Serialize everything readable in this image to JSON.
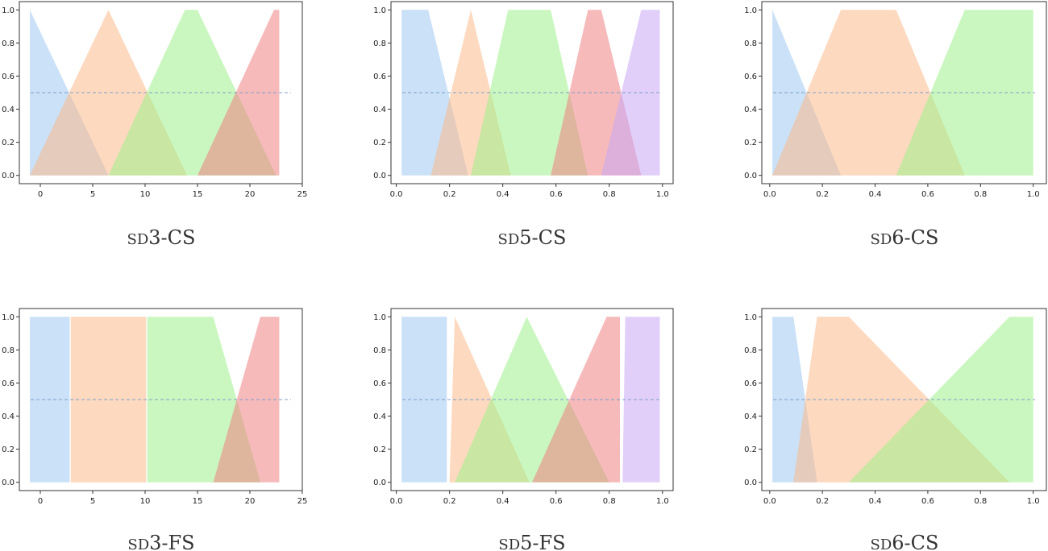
{
  "colors": {
    "fills": [
      "#9fc9f0",
      "#fbb98a",
      "#9ef08a",
      "#ef8284",
      "#c8a8f5"
    ],
    "fill_opacity": 0.55,
    "threshold_line": "#7f9fc9",
    "axes": "#333333"
  },
  "chart_data": [
    {
      "type": "area",
      "caption": "sd3-CS",
      "xlim": [
        -2,
        25
      ],
      "ylim": [
        -0.05,
        1.05
      ],
      "xticks": [
        "0",
        "5",
        "10",
        "15",
        "20",
        "25"
      ],
      "xtick_values": [
        0,
        5,
        10,
        15,
        20,
        25
      ],
      "yticks": [
        "0.0",
        "0.2",
        "0.4",
        "0.6",
        "0.8",
        "1.0"
      ],
      "ytick_values": [
        0,
        0.2,
        0.4,
        0.6,
        0.8,
        1.0
      ],
      "threshold": 0.5,
      "series": [
        {
          "x": [
            -1,
            -1,
            6.5
          ],
          "y": [
            0,
            1,
            0
          ]
        },
        {
          "x": [
            -1,
            6.5,
            14
          ],
          "y": [
            0,
            1,
            0
          ]
        },
        {
          "x": [
            6.5,
            13.8,
            15,
            22.5
          ],
          "y": [
            0,
            1,
            1,
            0
          ]
        },
        {
          "x": [
            15,
            22.3,
            22.8,
            22.8
          ],
          "y": [
            0,
            1,
            1,
            0
          ]
        }
      ]
    },
    {
      "type": "area",
      "caption": "sd5-CS",
      "xlim": [
        -0.02,
        1.04
      ],
      "ylim": [
        -0.05,
        1.05
      ],
      "xticks": [
        "0.0",
        "0.2",
        "0.4",
        "0.6",
        "0.8",
        "1.0"
      ],
      "xtick_values": [
        0,
        0.2,
        0.4,
        0.6,
        0.8,
        1.0
      ],
      "yticks": [
        "0.0",
        "0.2",
        "0.4",
        "0.6",
        "0.8",
        "1.0"
      ],
      "ytick_values": [
        0,
        0.2,
        0.4,
        0.6,
        0.8,
        1.0
      ],
      "threshold": 0.5,
      "series": [
        {
          "x": [
            0.02,
            0.02,
            0.12,
            0.27
          ],
          "y": [
            0,
            1,
            1,
            0
          ]
        },
        {
          "x": [
            0.13,
            0.28,
            0.43
          ],
          "y": [
            0,
            1,
            0
          ]
        },
        {
          "x": [
            0.28,
            0.42,
            0.58,
            0.72
          ],
          "y": [
            0,
            1,
            1,
            0
          ]
        },
        {
          "x": [
            0.58,
            0.72,
            0.77,
            0.92
          ],
          "y": [
            0,
            1,
            1,
            0
          ]
        },
        {
          "x": [
            0.77,
            0.92,
            0.99,
            0.99
          ],
          "y": [
            0,
            1,
            1,
            0
          ]
        }
      ]
    },
    {
      "type": "area",
      "caption": "sd6-CS",
      "xlim": [
        -0.03,
        1.05
      ],
      "ylim": [
        -0.05,
        1.05
      ],
      "xticks": [
        "0.0",
        "0.2",
        "0.4",
        "0.6",
        "0.8",
        "1.0"
      ],
      "xtick_values": [
        0,
        0.2,
        0.4,
        0.6,
        0.8,
        1.0
      ],
      "yticks": [
        "0.0",
        "0.2",
        "0.4",
        "0.6",
        "0.8",
        "1.0"
      ],
      "ytick_values": [
        0,
        0.2,
        0.4,
        0.6,
        0.8,
        1.0
      ],
      "threshold": 0.5,
      "series": [
        {
          "x": [
            0.01,
            0.01,
            0.27
          ],
          "y": [
            0,
            1,
            0
          ]
        },
        {
          "x": [
            0.01,
            0.27,
            0.48,
            0.74
          ],
          "y": [
            0,
            1,
            1,
            0
          ]
        },
        {
          "x": [
            0.48,
            0.74,
            1.0,
            1.0
          ],
          "y": [
            0,
            1,
            1,
            0
          ]
        }
      ]
    },
    {
      "type": "area",
      "caption": "sd3-FS",
      "xlim": [
        -2,
        25
      ],
      "ylim": [
        -0.05,
        1.05
      ],
      "xticks": [
        "0",
        "5",
        "10",
        "15",
        "20",
        "25"
      ],
      "xtick_values": [
        0,
        5,
        10,
        15,
        20,
        25
      ],
      "yticks": [
        "0.0",
        "0.2",
        "0.4",
        "0.6",
        "0.8",
        "1.0"
      ],
      "ytick_values": [
        0,
        0.2,
        0.4,
        0.6,
        0.8,
        1.0
      ],
      "threshold": 0.5,
      "series": [
        {
          "x": [
            -1,
            -1,
            2.8,
            2.8
          ],
          "y": [
            0,
            1,
            1,
            0
          ]
        },
        {
          "x": [
            2.9,
            2.9,
            10.1,
            10.1
          ],
          "y": [
            0,
            1,
            1,
            0
          ]
        },
        {
          "x": [
            10.2,
            10.2,
            16.5,
            21
          ],
          "y": [
            0,
            1,
            1,
            0
          ]
        },
        {
          "x": [
            16.5,
            21,
            22.8,
            22.8
          ],
          "y": [
            0,
            1,
            1,
            0
          ]
        }
      ]
    },
    {
      "type": "area",
      "caption": "sd5-FS",
      "xlim": [
        -0.02,
        1.04
      ],
      "ylim": [
        -0.05,
        1.05
      ],
      "xticks": [
        "0.0",
        "0.2",
        "0.4",
        "0.6",
        "0.8",
        "1.0"
      ],
      "xtick_values": [
        0,
        0.2,
        0.4,
        0.6,
        0.8,
        1.0
      ],
      "yticks": [
        "0.0",
        "0.2",
        "0.4",
        "0.6",
        "0.8",
        "1.0"
      ],
      "ytick_values": [
        0,
        0.2,
        0.4,
        0.6,
        0.8,
        1.0
      ],
      "threshold": 0.5,
      "series": [
        {
          "x": [
            0.02,
            0.02,
            0.19,
            0.19
          ],
          "y": [
            0,
            1,
            1,
            0
          ]
        },
        {
          "x": [
            0.2,
            0.22,
            0.5
          ],
          "y": [
            0,
            1,
            0
          ]
        },
        {
          "x": [
            0.22,
            0.49,
            0.8
          ],
          "y": [
            0,
            1,
            0
          ]
        },
        {
          "x": [
            0.51,
            0.79,
            0.84,
            0.84
          ],
          "y": [
            0,
            1,
            1,
            0
          ]
        },
        {
          "x": [
            0.85,
            0.86,
            0.99,
            0.99
          ],
          "y": [
            0,
            1,
            1,
            0
          ]
        }
      ]
    },
    {
      "type": "area",
      "caption": "sd6-CS",
      "xlim": [
        -0.03,
        1.05
      ],
      "ylim": [
        -0.05,
        1.05
      ],
      "xticks": [
        "0.0",
        "0.2",
        "0.4",
        "0.6",
        "0.8",
        "1.0"
      ],
      "xtick_values": [
        0,
        0.2,
        0.4,
        0.6,
        0.8,
        1.0
      ],
      "yticks": [
        "0.0",
        "0.2",
        "0.4",
        "0.6",
        "0.8",
        "1.0"
      ],
      "ytick_values": [
        0,
        0.2,
        0.4,
        0.6,
        0.8,
        1.0
      ],
      "threshold": 0.5,
      "series": [
        {
          "x": [
            0.01,
            0.01,
            0.09,
            0.18
          ],
          "y": [
            0,
            1,
            1,
            0
          ]
        },
        {
          "x": [
            0.09,
            0.18,
            0.3,
            0.91
          ],
          "y": [
            0,
            1,
            1,
            0
          ]
        },
        {
          "x": [
            0.3,
            0.91,
            1.0,
            1.0
          ],
          "y": [
            0,
            1,
            1,
            0
          ]
        }
      ]
    }
  ]
}
